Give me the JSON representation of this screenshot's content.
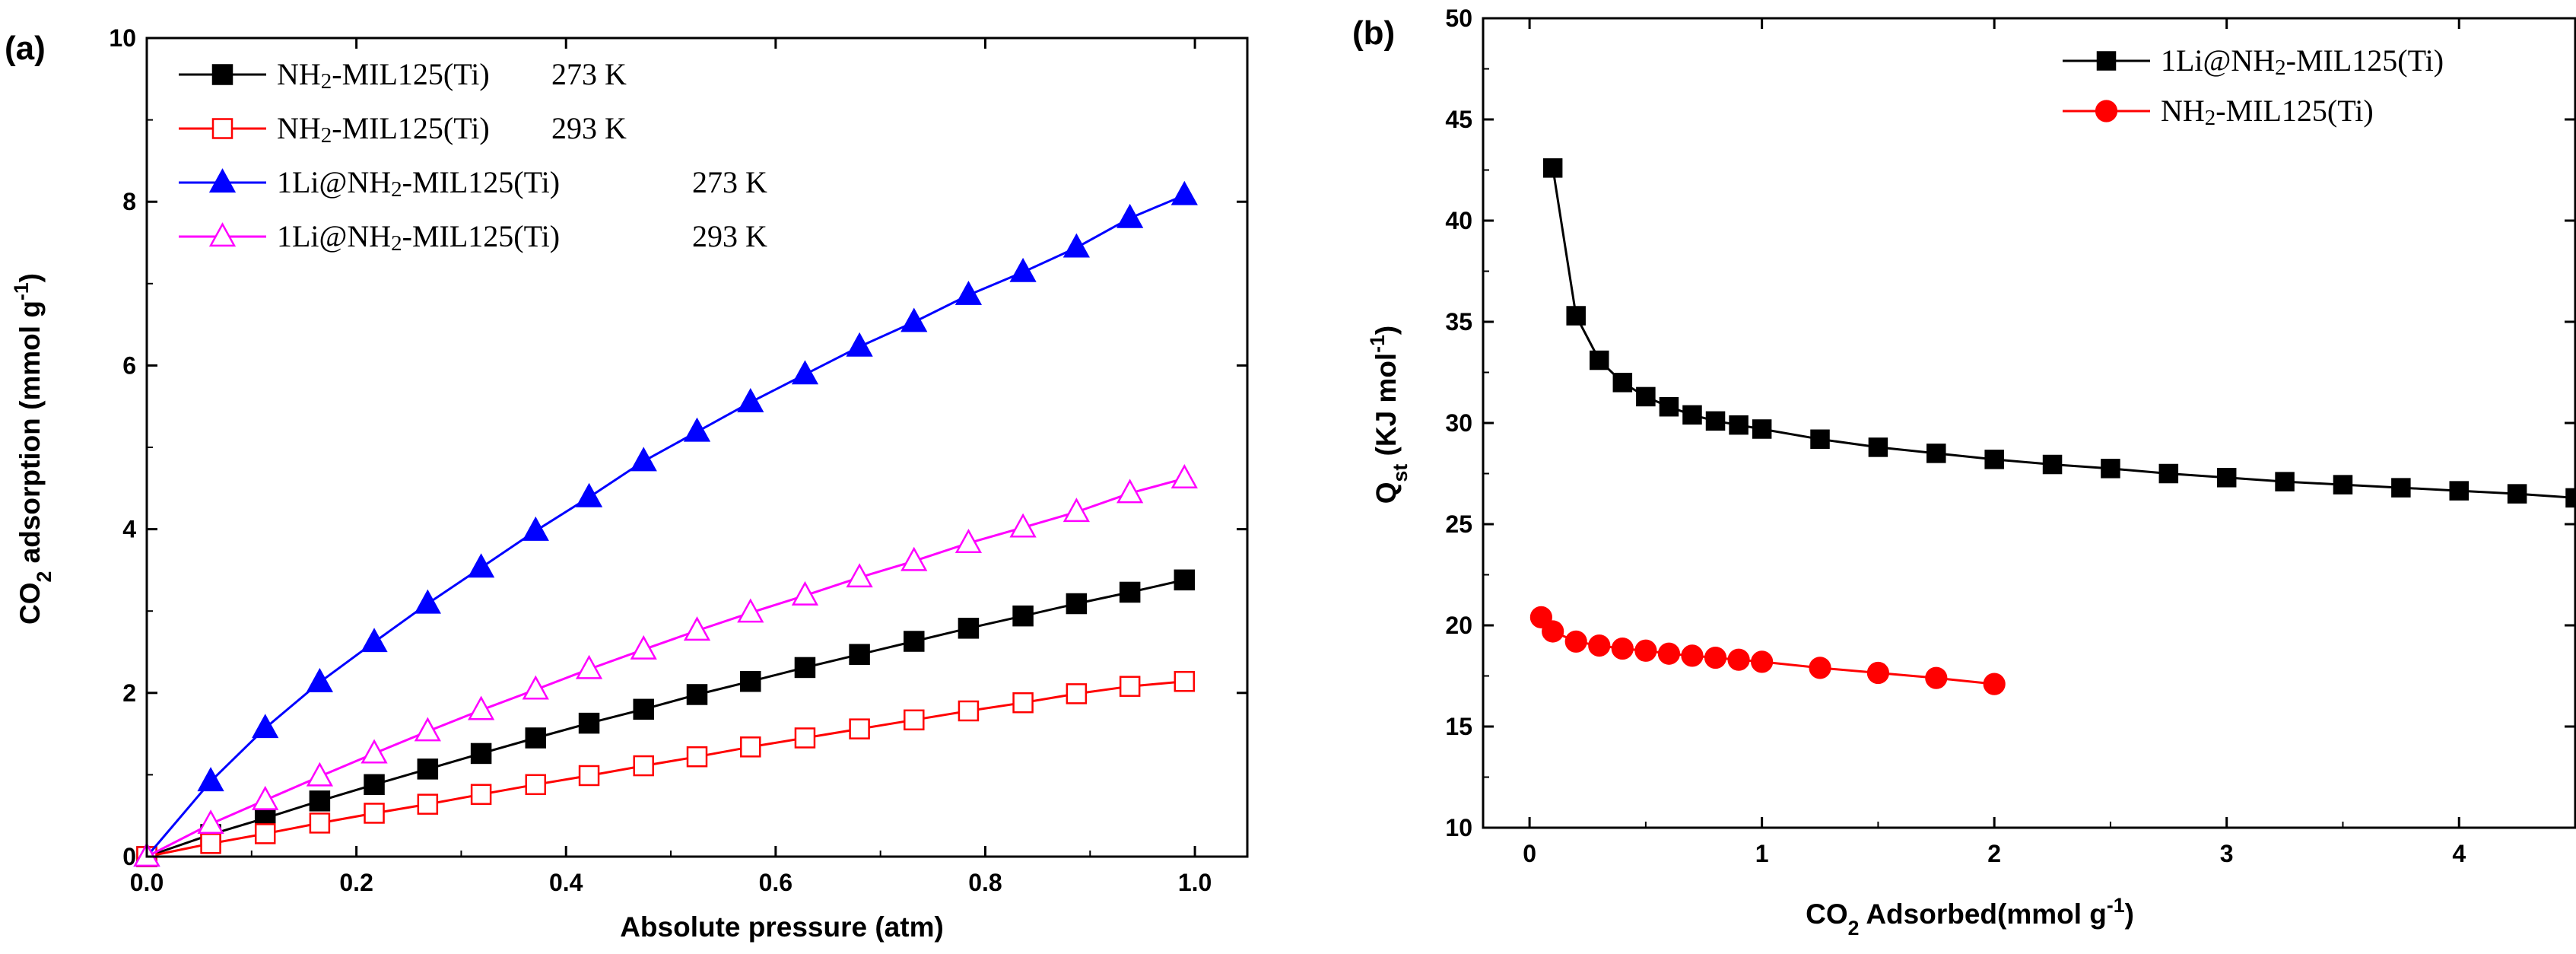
{
  "chart_data": [
    {
      "type": "line",
      "panel_label": "(a)",
      "xlabel": "Absolute pressure (atm)",
      "ylabel_parts": [
        "CO",
        "2",
        " adsorption (mmol g",
        "-1",
        ")"
      ],
      "xlim": [
        0.0,
        1.05
      ],
      "ylim": [
        0,
        10
      ],
      "xticks": [
        "0.0",
        "0.2",
        "0.4",
        "0.6",
        "0.8",
        "1.0"
      ],
      "xtick_values": [
        0.0,
        0.2,
        0.4,
        0.6,
        0.8,
        1.0
      ],
      "yticks": [
        "0",
        "2",
        "4",
        "6",
        "8",
        "10"
      ],
      "ytick_values": [
        0,
        2,
        4,
        6,
        8,
        10
      ],
      "legend_position": "top-left",
      "series": [
        {
          "name": "NH2-MIL125(Ti)    273 K",
          "legend_parts": [
            "NH",
            "2",
            "-MIL125(Ti)",
            "273 K"
          ],
          "color": "#000000",
          "marker": "square",
          "filled": true,
          "x": [
            0.0,
            0.061,
            0.113,
            0.165,
            0.217,
            0.268,
            0.319,
            0.371,
            0.422,
            0.474,
            0.525,
            0.576,
            0.628,
            0.68,
            0.732,
            0.784,
            0.836,
            0.887,
            0.938,
            0.99
          ],
          "y": [
            0.0,
            0.27,
            0.47,
            0.68,
            0.88,
            1.07,
            1.26,
            1.45,
            1.63,
            1.8,
            1.98,
            2.14,
            2.31,
            2.47,
            2.63,
            2.79,
            2.94,
            3.09,
            3.23,
            3.38
          ]
        },
        {
          "name": "NH2-MIL125(Ti)    293 K",
          "legend_parts": [
            "NH",
            "2",
            "-MIL125(Ti)",
            "293 K"
          ],
          "color": "#ff0000",
          "marker": "square",
          "filled": false,
          "x": [
            0.0,
            0.061,
            0.113,
            0.165,
            0.217,
            0.268,
            0.319,
            0.371,
            0.422,
            0.474,
            0.525,
            0.576,
            0.628,
            0.68,
            0.732,
            0.784,
            0.836,
            0.887,
            0.938,
            0.99
          ],
          "y": [
            0.0,
            0.16,
            0.28,
            0.41,
            0.53,
            0.64,
            0.76,
            0.88,
            0.99,
            1.11,
            1.22,
            1.34,
            1.45,
            1.56,
            1.67,
            1.78,
            1.88,
            1.99,
            2.08,
            2.14
          ]
        },
        {
          "name": "1Li@NH2-MIL125(Ti)    273 K",
          "legend_parts": [
            "1Li@NH",
            "2",
            "-MIL125(Ti)",
            "273 K"
          ],
          "color": "#0000ff",
          "marker": "triangle",
          "filled": true,
          "x": [
            0.0,
            0.061,
            0.113,
            0.165,
            0.217,
            0.268,
            0.319,
            0.371,
            0.422,
            0.474,
            0.525,
            0.576,
            0.628,
            0.68,
            0.732,
            0.784,
            0.836,
            0.887,
            0.938,
            0.99
          ],
          "y": [
            0.0,
            0.92,
            1.57,
            2.13,
            2.62,
            3.09,
            3.53,
            3.98,
            4.39,
            4.83,
            5.19,
            5.55,
            5.89,
            6.23,
            6.53,
            6.86,
            7.14,
            7.44,
            7.8,
            8.08
          ]
        },
        {
          "name": "1Li@NH2-MIL125(Ti)    293 K",
          "legend_parts": [
            "1Li@NH",
            "2",
            "-MIL125(Ti)",
            "293 K"
          ],
          "color": "#ff00ff",
          "marker": "triangle",
          "filled": false,
          "x": [
            0.0,
            0.061,
            0.113,
            0.165,
            0.217,
            0.268,
            0.319,
            0.371,
            0.422,
            0.474,
            0.525,
            0.576,
            0.628,
            0.68,
            0.732,
            0.784,
            0.836,
            0.887,
            0.938,
            0.99
          ],
          "y": [
            0.0,
            0.4,
            0.69,
            0.98,
            1.26,
            1.53,
            1.79,
            2.04,
            2.29,
            2.53,
            2.76,
            2.98,
            3.19,
            3.41,
            3.61,
            3.83,
            4.02,
            4.21,
            4.44,
            4.62
          ]
        }
      ]
    },
    {
      "type": "line",
      "panel_label": "(b)",
      "xlabel_parts": [
        "CO",
        "2",
        " Adsorbed(mmol g",
        "-1",
        ")"
      ],
      "ylabel_parts": [
        "Q",
        "st",
        " (KJ mol",
        "-1",
        ")"
      ],
      "xlim": [
        -0.2,
        4.5
      ],
      "ylim": [
        10,
        50
      ],
      "xticks": [
        "0",
        "1",
        "2",
        "3",
        "4"
      ],
      "xtick_values": [
        0,
        1,
        2,
        3,
        4
      ],
      "yticks": [
        "10",
        "15",
        "20",
        "25",
        "30",
        "35",
        "40",
        "45",
        "50"
      ],
      "ytick_values": [
        10,
        15,
        20,
        25,
        30,
        35,
        40,
        45,
        50
      ],
      "legend_position": "top-right",
      "series": [
        {
          "name": "1Li@NH2-MIL125(Ti)",
          "legend_parts": [
            "1Li@NH",
            "2",
            "-MIL125(Ti)"
          ],
          "color": "#000000",
          "marker": "square",
          "filled": true,
          "x": [
            0.1,
            0.2,
            0.3,
            0.4,
            0.5,
            0.6,
            0.7,
            0.8,
            0.9,
            1.0,
            1.25,
            1.5,
            1.75,
            2.0,
            2.25,
            2.5,
            2.75,
            3.0,
            3.25,
            3.5,
            3.75,
            4.0,
            4.25,
            4.5
          ],
          "y": [
            42.6,
            35.3,
            33.1,
            32.0,
            31.3,
            30.8,
            30.4,
            30.1,
            29.9,
            29.7,
            29.2,
            28.8,
            28.5,
            28.2,
            27.95,
            27.75,
            27.5,
            27.3,
            27.1,
            26.95,
            26.8,
            26.65,
            26.5,
            26.3
          ]
        },
        {
          "name": "NH2-MIL125(Ti)",
          "legend_parts": [
            "NH",
            "2",
            "-MIL125(Ti)"
          ],
          "color": "#ff0000",
          "marker": "circle",
          "filled": true,
          "x": [
            0.05,
            0.1,
            0.2,
            0.3,
            0.4,
            0.5,
            0.6,
            0.7,
            0.8,
            0.9,
            1.0,
            1.25,
            1.5,
            1.75,
            2.0
          ],
          "y": [
            20.4,
            19.7,
            19.2,
            19.0,
            18.85,
            18.75,
            18.6,
            18.5,
            18.4,
            18.3,
            18.2,
            17.9,
            17.65,
            17.4,
            17.1
          ]
        }
      ]
    }
  ]
}
